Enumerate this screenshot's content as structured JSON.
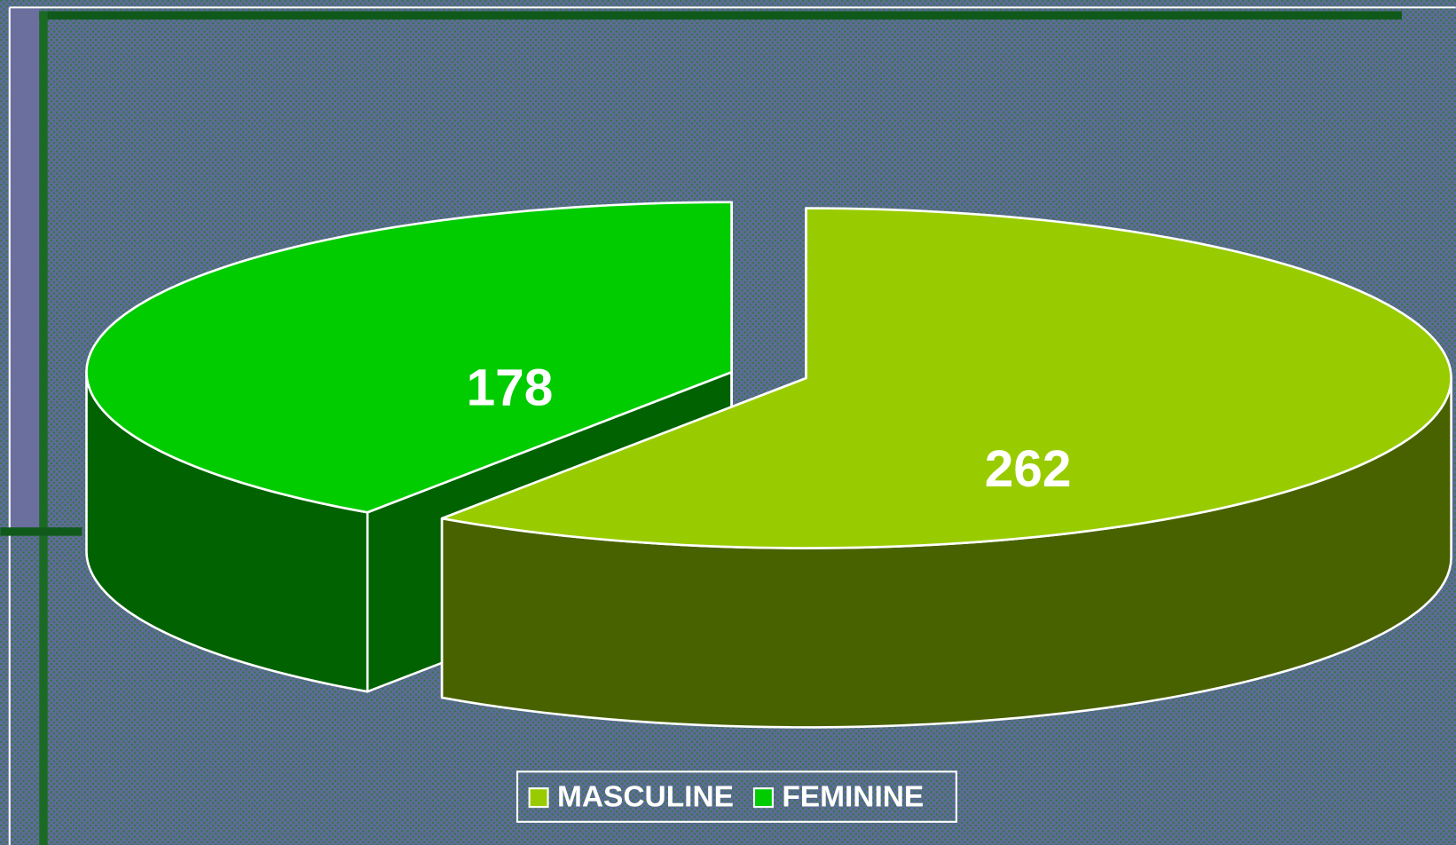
{
  "chart_data": {
    "type": "pie",
    "categories": [
      "MASCULINE",
      "FEMININE"
    ],
    "values": [
      262,
      178
    ],
    "colors": [
      "#99cc00",
      "#00cc00"
    ],
    "legend": "bottom"
  }
}
